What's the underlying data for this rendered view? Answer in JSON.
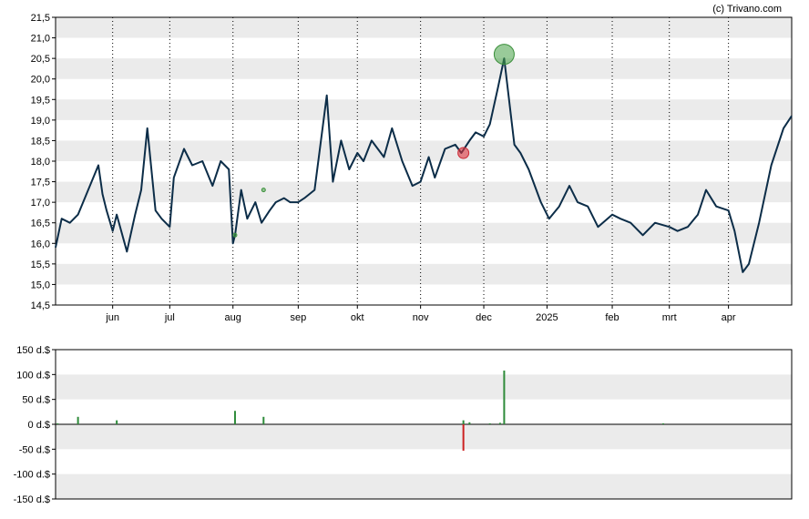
{
  "credit": "(c) Trivano.com",
  "chart_data": [
    {
      "type": "line",
      "title": "",
      "xlabel": "",
      "ylabel": "",
      "ylim": [
        14.5,
        21.5
      ],
      "y_ticks": [
        "21,5",
        "21,0",
        "20,5",
        "20,0",
        "19,5",
        "19,0",
        "18,5",
        "18,0",
        "17,5",
        "17,0",
        "16,5",
        "16,0",
        "15,5",
        "15,0",
        "14,5"
      ],
      "x_ticks": [
        "jun",
        "jul",
        "aug",
        "sep",
        "okt",
        "nov",
        "dec",
        "2025",
        "feb",
        "mrt",
        "apr"
      ],
      "x_tick_dates": [
        "2024-06-03",
        "2024-07-01",
        "2024-08-01",
        "2024-09-02",
        "2024-10-01",
        "2024-11-01",
        "2024-12-02",
        "2025-01-02",
        "2025-02-03",
        "2025-03-03",
        "2025-04-01"
      ],
      "grid": true,
      "line_color": "#0c2d48",
      "series": [
        {
          "x": [
            "2024-05-06",
            "2024-05-09",
            "2024-05-13",
            "2024-05-17",
            "2024-05-22",
            "2024-05-27",
            "2024-05-29",
            "2024-05-31",
            "2024-06-03",
            "2024-06-05",
            "2024-06-10",
            "2024-06-14",
            "2024-06-17",
            "2024-06-20",
            "2024-06-24",
            "2024-06-27",
            "2024-07-01",
            "2024-07-03",
            "2024-07-08",
            "2024-07-12",
            "2024-07-17",
            "2024-07-22",
            "2024-07-26",
            "2024-07-30",
            "2024-08-01",
            "2024-08-02",
            "2024-08-05",
            "2024-08-08",
            "2024-08-12",
            "2024-08-15",
            "2024-08-19",
            "2024-08-22",
            "2024-08-26",
            "2024-08-29",
            "2024-09-02",
            "2024-09-05",
            "2024-09-10",
            "2024-09-16",
            "2024-09-19",
            "2024-09-23",
            "2024-09-27",
            "2024-10-01",
            "2024-10-04",
            "2024-10-08",
            "2024-10-14",
            "2024-10-18",
            "2024-10-23",
            "2024-10-28",
            "2024-11-01",
            "2024-11-05",
            "2024-11-08",
            "2024-11-13",
            "2024-11-18",
            "2024-11-21",
            "2024-11-25",
            "2024-11-28",
            "2024-12-02",
            "2024-12-05",
            "2024-12-09",
            "2024-12-12",
            "2024-12-17",
            "2024-12-20",
            "2024-12-24",
            "2024-12-30",
            "2025-01-03",
            "2025-01-08",
            "2025-01-13",
            "2025-01-17",
            "2025-01-22",
            "2025-01-27",
            "2025-02-03",
            "2025-02-07",
            "2025-02-12",
            "2025-02-18",
            "2025-02-24",
            "2025-03-03",
            "2025-03-07",
            "2025-03-12",
            "2025-03-17",
            "2025-03-21",
            "2025-03-26",
            "2025-04-01",
            "2025-04-04",
            "2025-04-08",
            "2025-04-11",
            "2025-04-16",
            "2025-04-22",
            "2025-04-28",
            "2025-05-02"
          ],
          "y": [
            15.9,
            16.6,
            16.5,
            16.7,
            17.3,
            17.9,
            17.2,
            16.8,
            16.3,
            16.7,
            15.8,
            16.7,
            17.3,
            18.8,
            16.8,
            16.6,
            16.4,
            17.6,
            18.3,
            17.9,
            18.0,
            17.4,
            18.0,
            17.8,
            16.0,
            16.2,
            17.3,
            16.6,
            17.0,
            16.5,
            16.8,
            17.0,
            17.1,
            17.0,
            17.0,
            17.1,
            17.3,
            19.6,
            17.5,
            18.5,
            17.8,
            18.2,
            18.0,
            18.5,
            18.1,
            18.8,
            18.0,
            17.4,
            17.5,
            18.1,
            17.6,
            18.3,
            18.4,
            18.2,
            18.5,
            18.7,
            18.6,
            18.9,
            19.8,
            20.5,
            18.4,
            18.2,
            17.8,
            17.0,
            16.6,
            16.9,
            17.4,
            17.0,
            16.9,
            16.4,
            16.7,
            16.6,
            16.5,
            16.2,
            16.5,
            16.4,
            16.3,
            16.4,
            16.7,
            17.3,
            16.9,
            16.8,
            16.3,
            15.3,
            15.5,
            16.5,
            17.9,
            18.8,
            19.1
          ]
        }
      ],
      "markers": [
        {
          "type": "buy",
          "date": "2024-12-12",
          "value": 20.6,
          "size": "large"
        },
        {
          "type": "sell",
          "date": "2024-11-22",
          "value": 18.2,
          "size": "small"
        },
        {
          "type": "buy",
          "date": "2024-08-02",
          "value": 16.2,
          "size": "tiny"
        },
        {
          "type": "buy",
          "date": "2024-08-16",
          "value": 17.3,
          "size": "tiny"
        }
      ]
    },
    {
      "type": "bar",
      "title": "",
      "ylabel": "",
      "ylim": [
        -150,
        150
      ],
      "y_ticks": [
        "150 d.$",
        "100 d.$",
        "50 d.$",
        "0 d.$",
        "-50 d.$",
        "-100 d.$",
        "-150 d.$"
      ],
      "grid": true,
      "buy_color": "#2e8b3a",
      "sell_color": "#cc2222",
      "bars": [
        {
          "date": "2024-05-07",
          "value": 2
        },
        {
          "date": "2024-05-17",
          "value": 15
        },
        {
          "date": "2024-06-05",
          "value": 8
        },
        {
          "date": "2024-08-02",
          "value": 27
        },
        {
          "date": "2024-08-16",
          "value": 15
        },
        {
          "date": "2024-11-22",
          "value": 8
        },
        {
          "date": "2024-11-22",
          "value": -53
        },
        {
          "date": "2024-11-25",
          "value": 4
        },
        {
          "date": "2024-12-05",
          "value": 2
        },
        {
          "date": "2024-12-10",
          "value": 3
        },
        {
          "date": "2024-12-12",
          "value": 108
        },
        {
          "date": "2025-02-28",
          "value": 2
        }
      ]
    }
  ]
}
